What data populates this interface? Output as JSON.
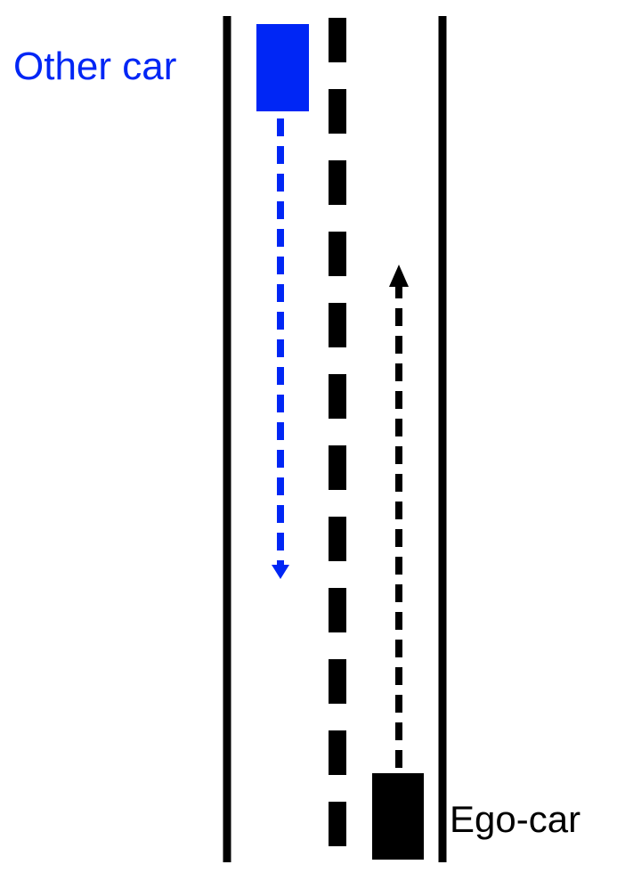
{
  "labels": {
    "other_car": "Other car",
    "ego_car": "Ego-car"
  },
  "colors": {
    "other_car": "#0026f5",
    "ego_car": "#000000",
    "road_lines": "#000000"
  }
}
